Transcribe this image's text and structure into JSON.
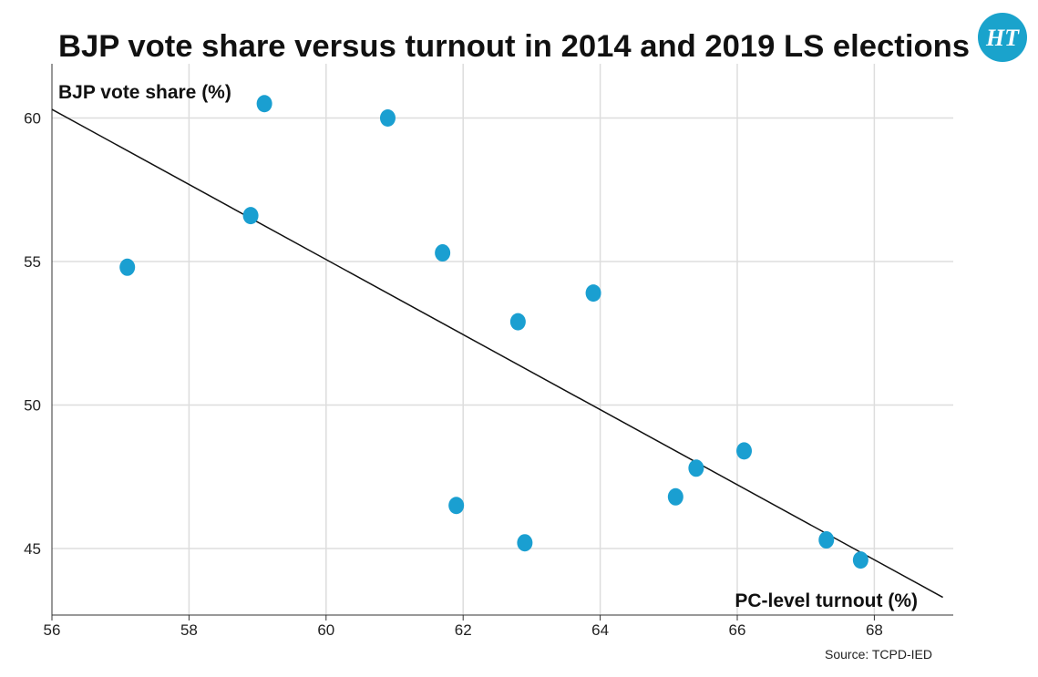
{
  "chart_data": {
    "type": "scatter",
    "title": "BJP vote share versus turnout in 2014 and 2019 LS elections",
    "ylabel": "BJP vote share (%)",
    "xlabel": "PC-level turnout (%)",
    "source": "Source: TCPD-IED",
    "brand": "HT",
    "xlim": [
      56,
      69
    ],
    "ylim": [
      43,
      62
    ],
    "xticks": [
      56,
      58,
      60,
      62,
      64,
      66,
      68
    ],
    "yticks": [
      45,
      50,
      55,
      60
    ],
    "grid": true,
    "point_color": "#1a9fd1",
    "points": [
      {
        "x": 57.1,
        "y": 54.8
      },
      {
        "x": 58.9,
        "y": 56.6
      },
      {
        "x": 59.1,
        "y": 60.5
      },
      {
        "x": 60.9,
        "y": 60.0
      },
      {
        "x": 61.7,
        "y": 55.3
      },
      {
        "x": 61.9,
        "y": 46.5
      },
      {
        "x": 62.8,
        "y": 52.9
      },
      {
        "x": 62.9,
        "y": 45.2
      },
      {
        "x": 63.9,
        "y": 53.9
      },
      {
        "x": 65.1,
        "y": 46.8
      },
      {
        "x": 65.4,
        "y": 47.8
      },
      {
        "x": 66.1,
        "y": 48.4
      },
      {
        "x": 67.3,
        "y": 45.3
      },
      {
        "x": 67.8,
        "y": 44.6
      }
    ],
    "trendline": {
      "x": [
        56,
        69
      ],
      "y": [
        60.3,
        43.3
      ]
    }
  }
}
